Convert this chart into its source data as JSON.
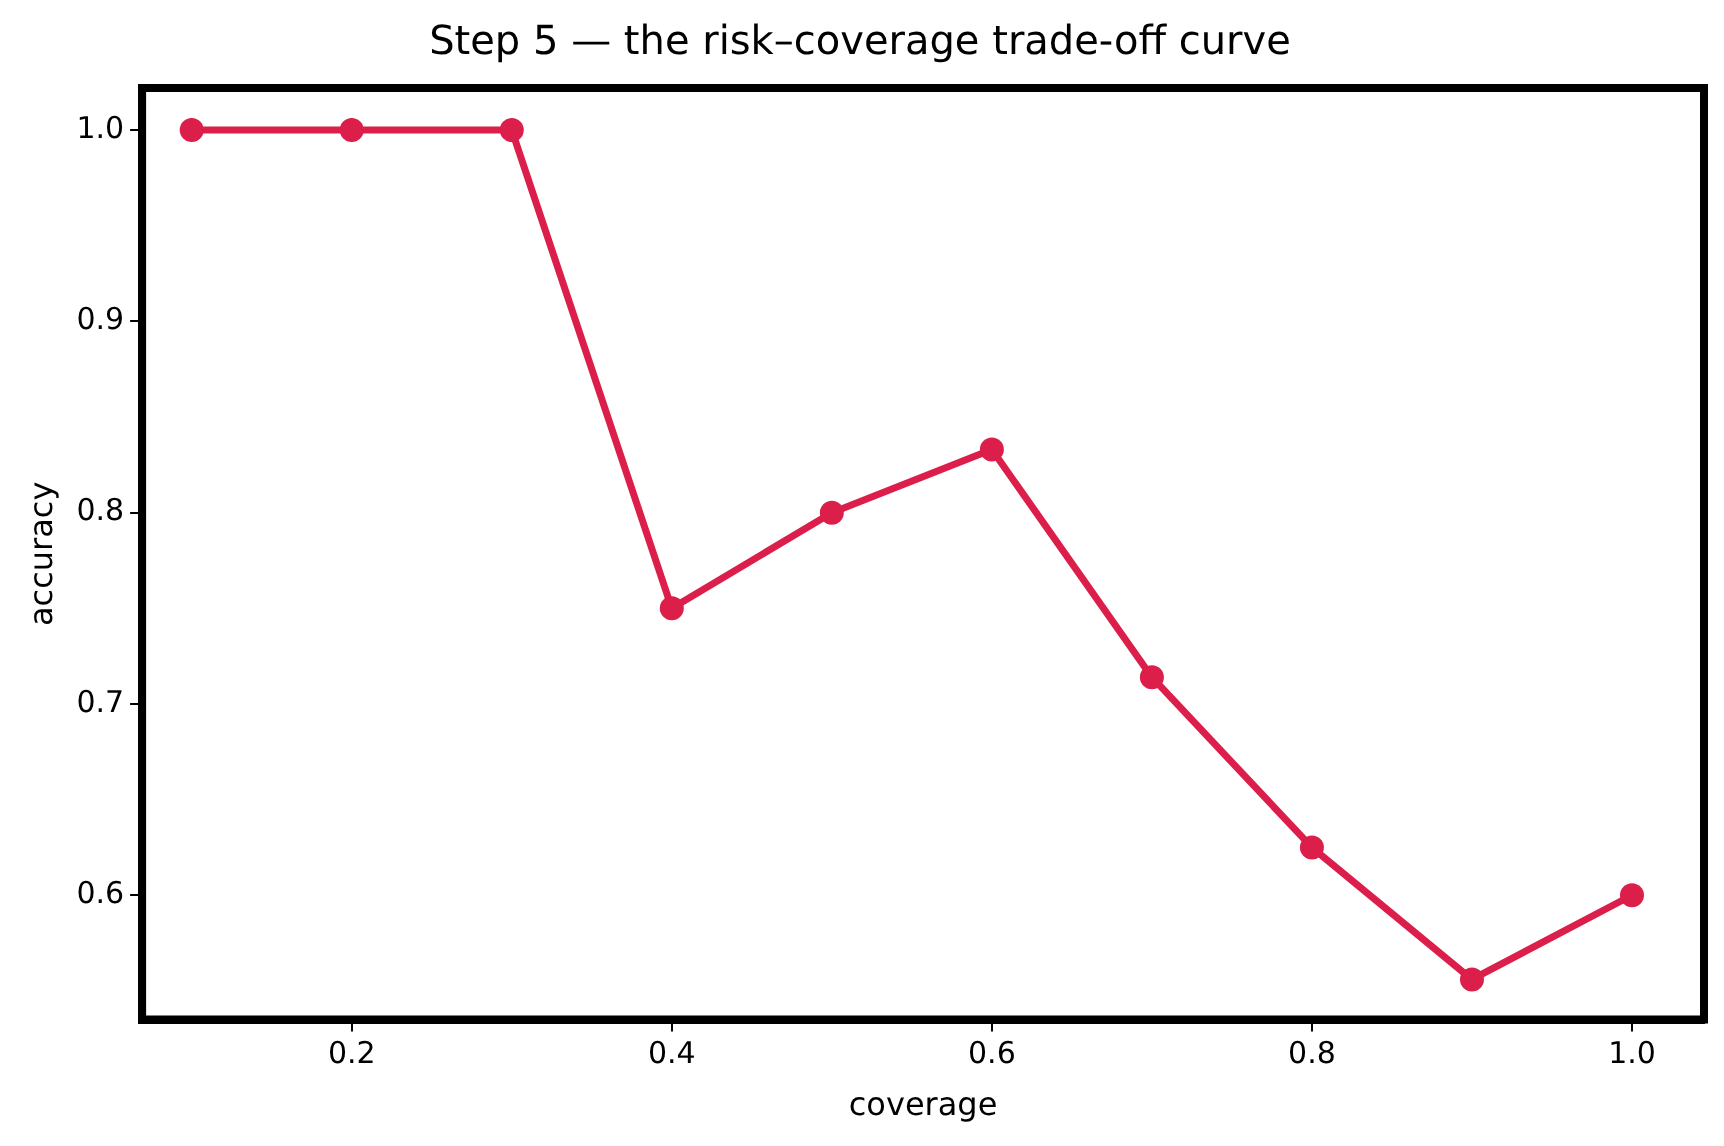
{
  "chart_data": {
    "type": "line",
    "title": "Step 5 — the risk–coverage trade-off curve",
    "xlabel": "coverage",
    "ylabel": "accuracy",
    "x": [
      0.1,
      0.2,
      0.3,
      0.4,
      0.5,
      0.6,
      0.7,
      0.8,
      0.9,
      1.0
    ],
    "series": [
      {
        "color": "#dc1e4b",
        "values": [
          1.0,
          1.0,
          1.0,
          0.75,
          0.8,
          0.833,
          0.714,
          0.625,
          0.556,
          0.6
        ]
      }
    ],
    "xlim": [
      0.069,
      1.045
    ],
    "xticks": [
      0.2,
      0.4,
      0.6,
      0.8,
      {
        "value": 1.0,
        "label": "1.0"
      }
    ],
    "ylim": [
      0.535,
      1.022
    ],
    "yticks": [
      0.6,
      0.7,
      0.8,
      0.9,
      {
        "value": 1.0,
        "label": "1.0"
      }
    ],
    "grid": false,
    "legend": false,
    "marker": "circle",
    "line_style": "solid"
  }
}
